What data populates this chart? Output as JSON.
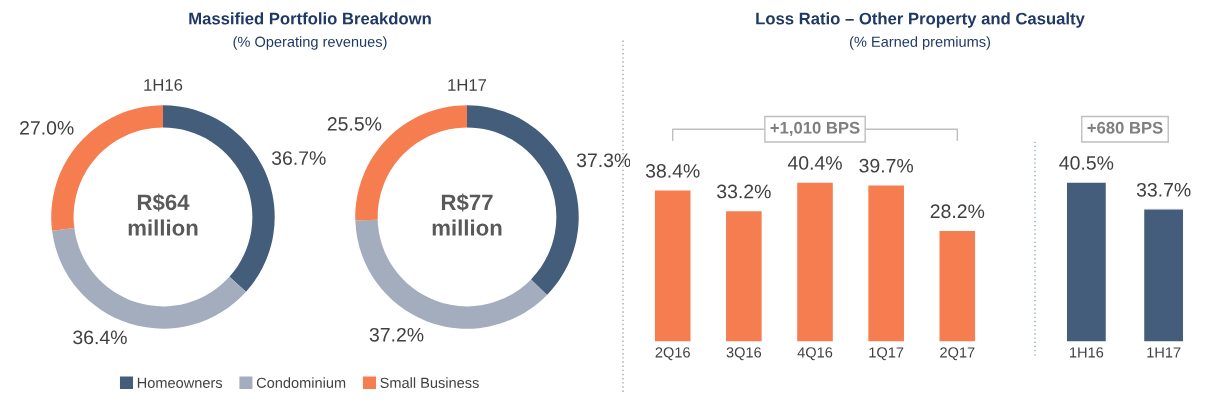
{
  "chart_data": [
    {
      "type": "donut",
      "title": "Massified Portfolio Breakdown",
      "subtitle": "(% Operating revenues)",
      "categories": [
        "Homeowners",
        "Condominium",
        "Small Business"
      ],
      "values": [
        36.7,
        36.4,
        27.0
      ],
      "colors": [
        "#435d7b",
        "#a3adbd",
        "#f57d4f"
      ],
      "value_labels": [
        "36.7%",
        "36.4%",
        "27.0%"
      ],
      "annotations": [
        "1H16",
        "R$64\nmillion"
      ],
      "legend": "bottom"
    },
    {
      "type": "donut",
      "categories": [
        null,
        null,
        null
      ],
      "values": [
        37.3,
        37.2,
        25.5
      ],
      "colors": [
        "#435d7b",
        "#a3adbd",
        "#f57d4f"
      ],
      "value_labels": [
        "37.3%",
        "37.2%",
        "25.5%"
      ],
      "annotations": [
        "1H17",
        "R$77\nmillion"
      ]
    },
    {
      "type": "bar",
      "title": "Loss Ratio – Other Property and Casualty",
      "subtitle": "(% Earned premiums)",
      "categories": [
        "2Q16",
        "3Q16",
        "4Q16",
        "1Q17",
        "2Q17"
      ],
      "values": [
        38.4,
        33.2,
        40.4,
        39.7,
        28.2
      ],
      "color": "#f57d4f",
      "value_labels": [
        "38.4%",
        "33.2%",
        "40.4%",
        "39.7%",
        "28.2%"
      ],
      "annotations": [
        "+1,010 BPS"
      ]
    },
    {
      "type": "bar",
      "categories": [
        "1H16",
        "1H17"
      ],
      "values": [
        40.5,
        33.7
      ],
      "color": "#435d7b",
      "value_labels": [
        "40.5%",
        "33.7%"
      ],
      "annotations": [
        "+680 BPS"
      ]
    }
  ]
}
